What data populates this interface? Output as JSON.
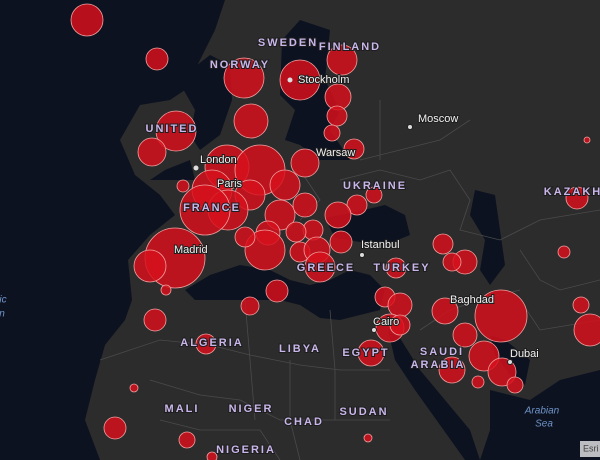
{
  "countries": [
    "SWEDEN",
    "FINLAND",
    "NORWAY",
    "UNITED",
    "UKRAINE",
    "FRANCE",
    "GREECE",
    "TURKEY",
    "KAZAKH",
    "ALGERIA",
    "LIBYA",
    "EGYPT",
    "SAUDI",
    "ARABIA",
    "MALI",
    "NIGER",
    "CHAD",
    "SUDAN",
    "NIGERIA"
  ],
  "cities": [
    "Stockholm",
    "Moscow",
    "London",
    "Paris",
    "Warsaw",
    "Madrid",
    "Istanbul",
    "Baghdad",
    "Cairo",
    "Dubai"
  ],
  "seas": [
    "ic",
    "n",
    "Arabian",
    "Sea"
  ],
  "attribution": "Esri"
}
